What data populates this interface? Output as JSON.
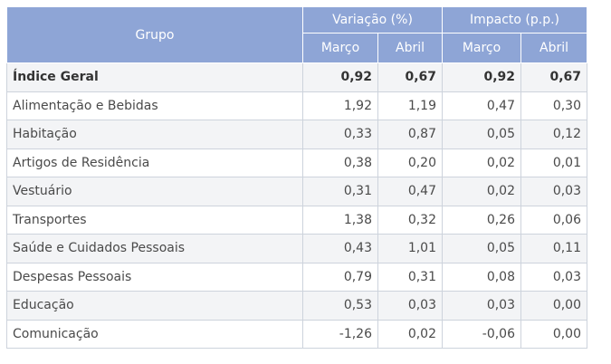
{
  "table": {
    "headers": {
      "group": "Grupo",
      "variacao": "Variação (%)",
      "impacto": "Impacto (p.p.)",
      "marco": "Março",
      "abril": "Abril"
    },
    "rows": [
      {
        "grupo": "Índice Geral",
        "var_marco": "0,92",
        "var_abril": "0,67",
        "imp_marco": "0,92",
        "imp_abril": "0,67"
      },
      {
        "grupo": "Alimentação e Bebidas",
        "var_marco": "1,92",
        "var_abril": "1,19",
        "imp_marco": "0,47",
        "imp_abril": "0,30"
      },
      {
        "grupo": "Habitação",
        "var_marco": "0,33",
        "var_abril": "0,87",
        "imp_marco": "0,05",
        "imp_abril": "0,12"
      },
      {
        "grupo": "Artigos de Residência",
        "var_marco": "0,38",
        "var_abril": "0,20",
        "imp_marco": "0,02",
        "imp_abril": "0,01"
      },
      {
        "grupo": "Vestuário",
        "var_marco": "0,31",
        "var_abril": "0,47",
        "imp_marco": "0,02",
        "imp_abril": "0,03"
      },
      {
        "grupo": "Transportes",
        "var_marco": "1,38",
        "var_abril": "0,32",
        "imp_marco": "0,26",
        "imp_abril": "0,06"
      },
      {
        "grupo": "Saúde e Cuidados Pessoais",
        "var_marco": "0,43",
        "var_abril": "1,01",
        "imp_marco": "0,05",
        "imp_abril": "0,11"
      },
      {
        "grupo": "Despesas Pessoais",
        "var_marco": "0,79",
        "var_abril": "0,31",
        "imp_marco": "0,08",
        "imp_abril": "0,03"
      },
      {
        "grupo": "Educação",
        "var_marco": "0,53",
        "var_abril": "0,03",
        "imp_marco": "0,03",
        "imp_abril": "0,00"
      },
      {
        "grupo": "Comunicação",
        "var_marco": "-1,26",
        "var_abril": "0,02",
        "imp_marco": "-0,06",
        "imp_abril": "0,00"
      }
    ]
  },
  "colors": {
    "header_bg": "#8ea5d6",
    "header_text": "#ffffff",
    "stripe": "#f3f4f6",
    "border": "#cdd3dc",
    "text": "#4a4a4a"
  }
}
